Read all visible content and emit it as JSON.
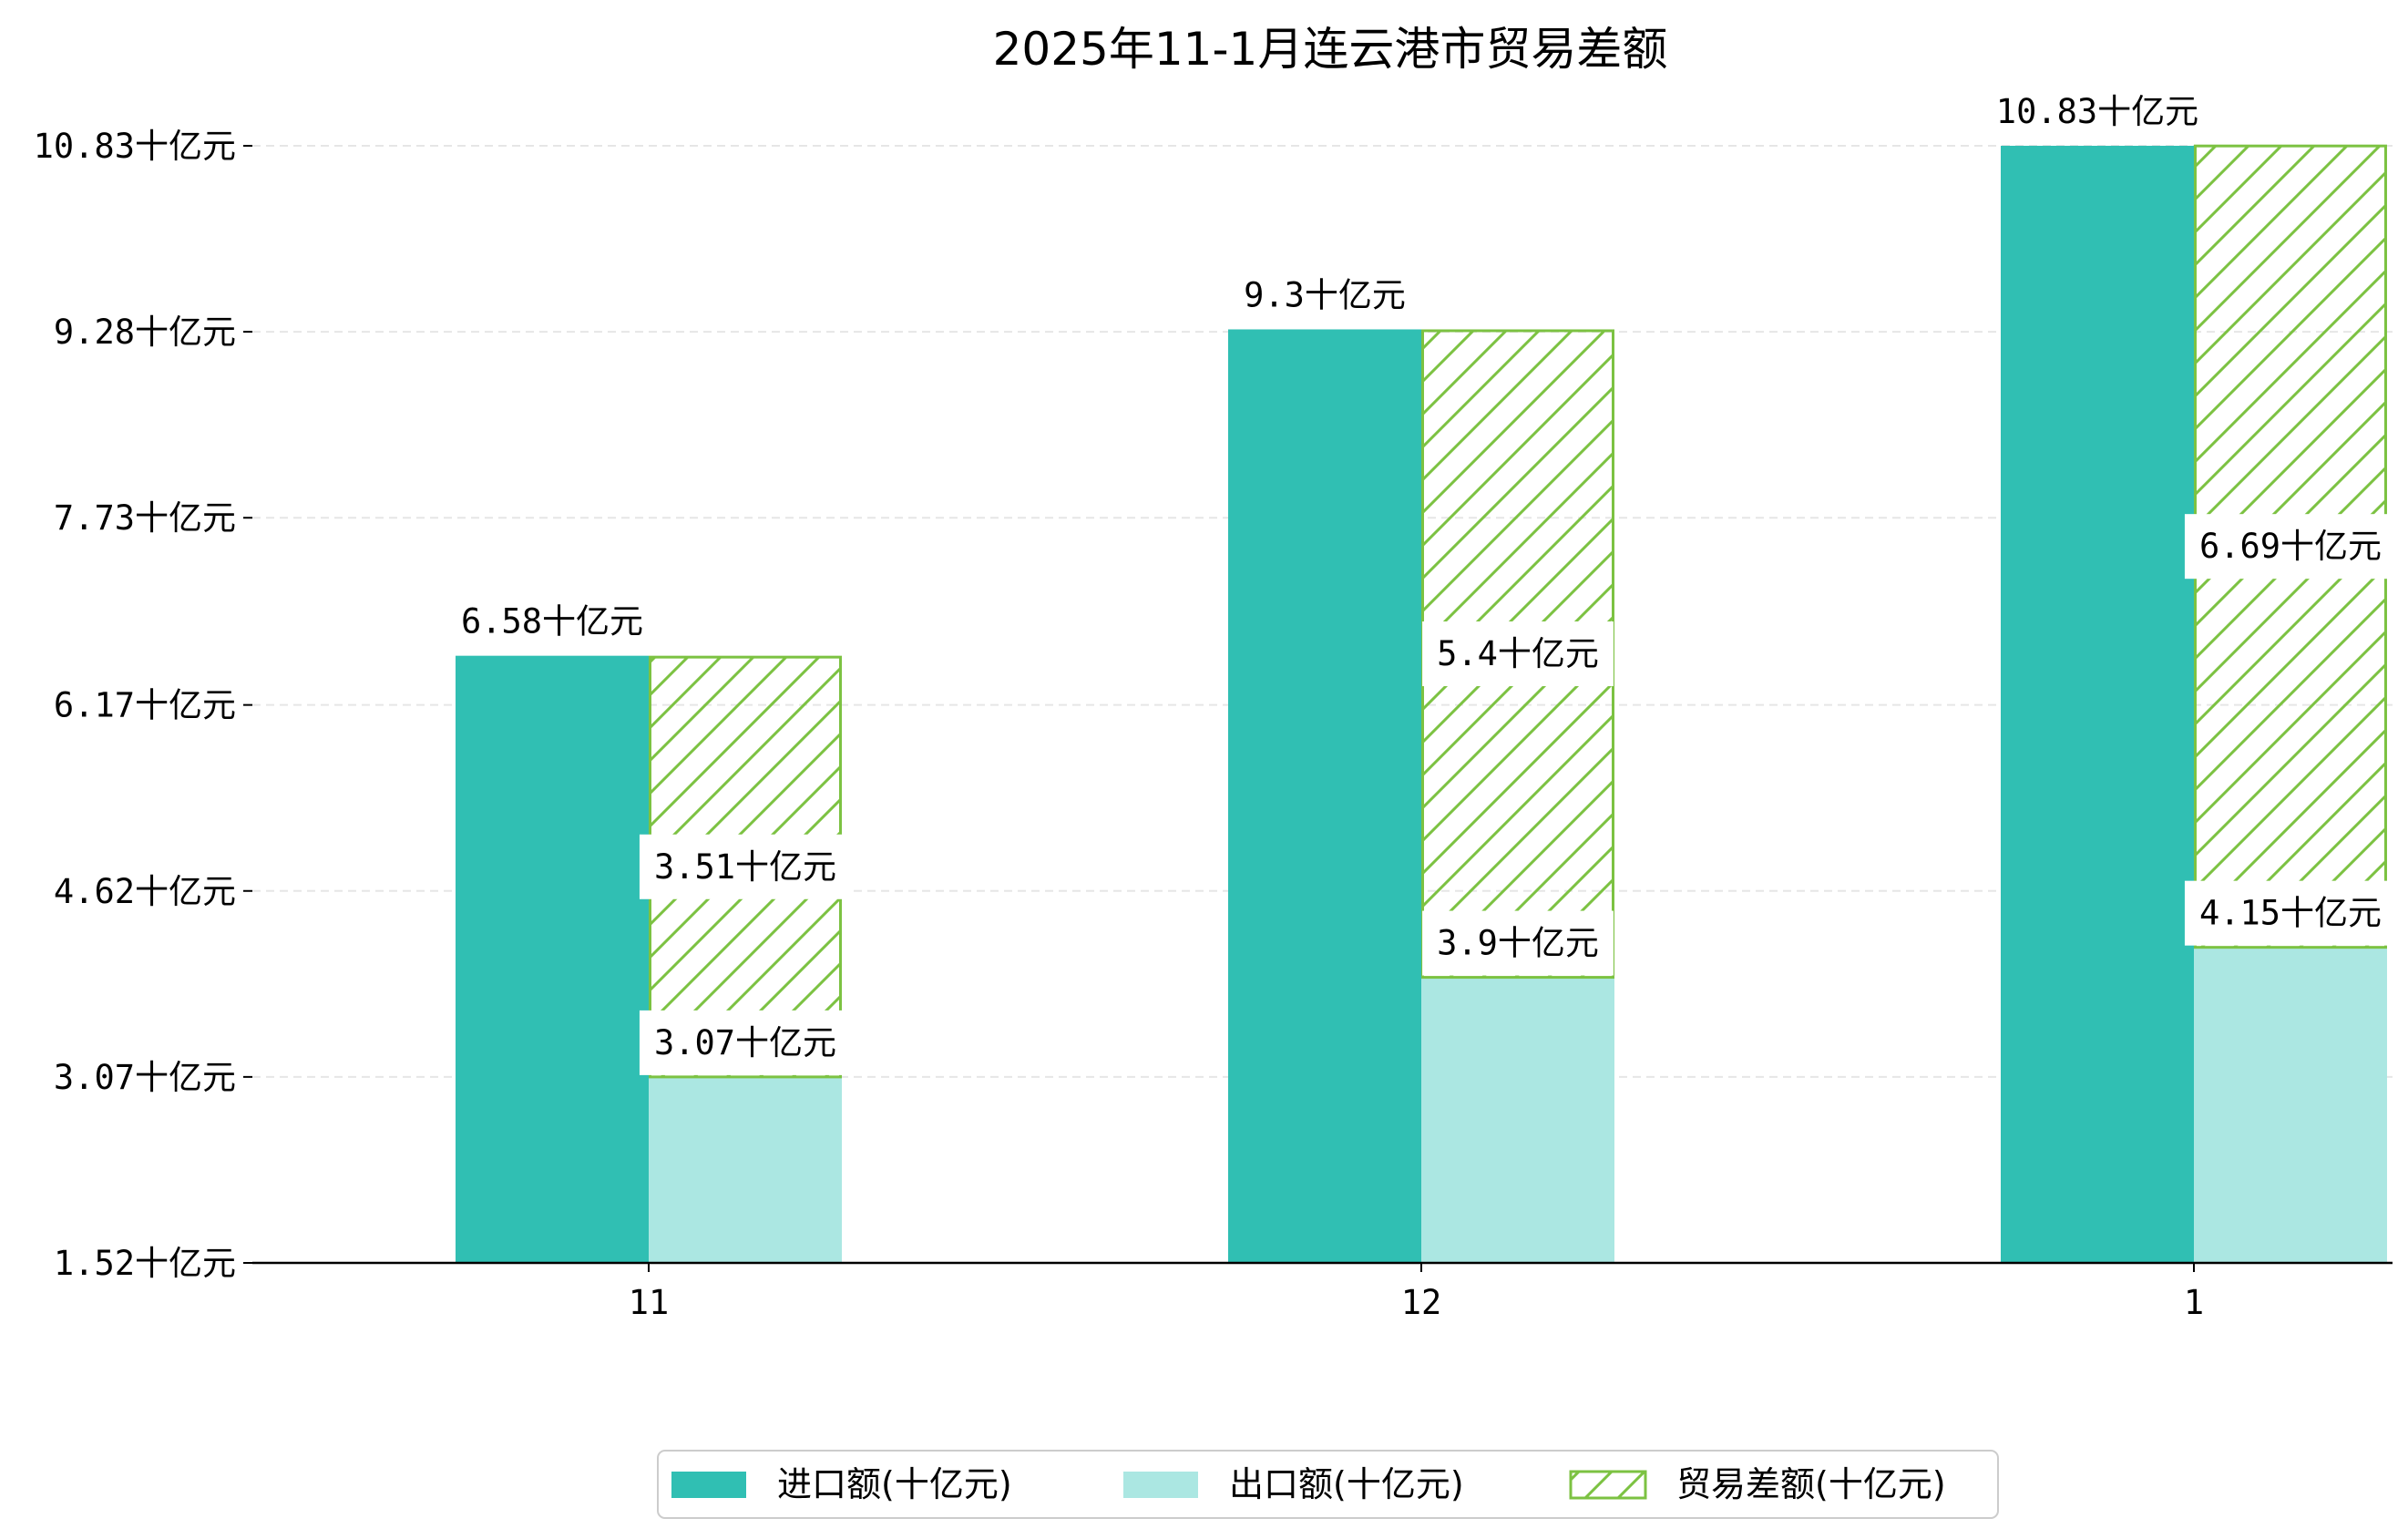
{
  "chart_data": {
    "type": "bar",
    "title": "2025年11-1月连云港市贸易差额",
    "xlabel": "",
    "ylabel": "",
    "categories": [
      "11",
      "12",
      "1"
    ],
    "series": [
      {
        "name": "进口额(十亿元)",
        "values": [
          6.58,
          9.3,
          10.83
        ],
        "labels": [
          "6.58十亿元",
          "9.3十亿元",
          "10.83十亿元"
        ],
        "color": "#30bfb3"
      },
      {
        "name": "出口额(十亿元)",
        "values": [
          3.07,
          3.9,
          4.15
        ],
        "labels": [
          "3.07十亿元",
          "3.9十亿元",
          "4.15十亿元"
        ],
        "color": "#abe7e2"
      },
      {
        "name": "贸易差额(十亿元)",
        "values": [
          3.51,
          5.4,
          6.69
        ],
        "labels": [
          "3.51十亿元",
          "5.4十亿元",
          "6.69十亿元"
        ],
        "color": "#7cc242",
        "stacked_on": "出口额(十亿元)",
        "pattern": "hatch"
      }
    ],
    "yticks": [
      1.52,
      3.07,
      4.62,
      6.17,
      7.73,
      9.28,
      10.83
    ],
    "ytick_labels": [
      "1.52十亿元",
      "3.07十亿元",
      "4.62十亿元",
      "6.17十亿元",
      "7.73十亿元",
      "9.28十亿元",
      "10.83十亿元"
    ],
    "ylim": [
      1.52,
      10.83
    ],
    "grid": "y-dashed",
    "legend": "bottom-center"
  }
}
